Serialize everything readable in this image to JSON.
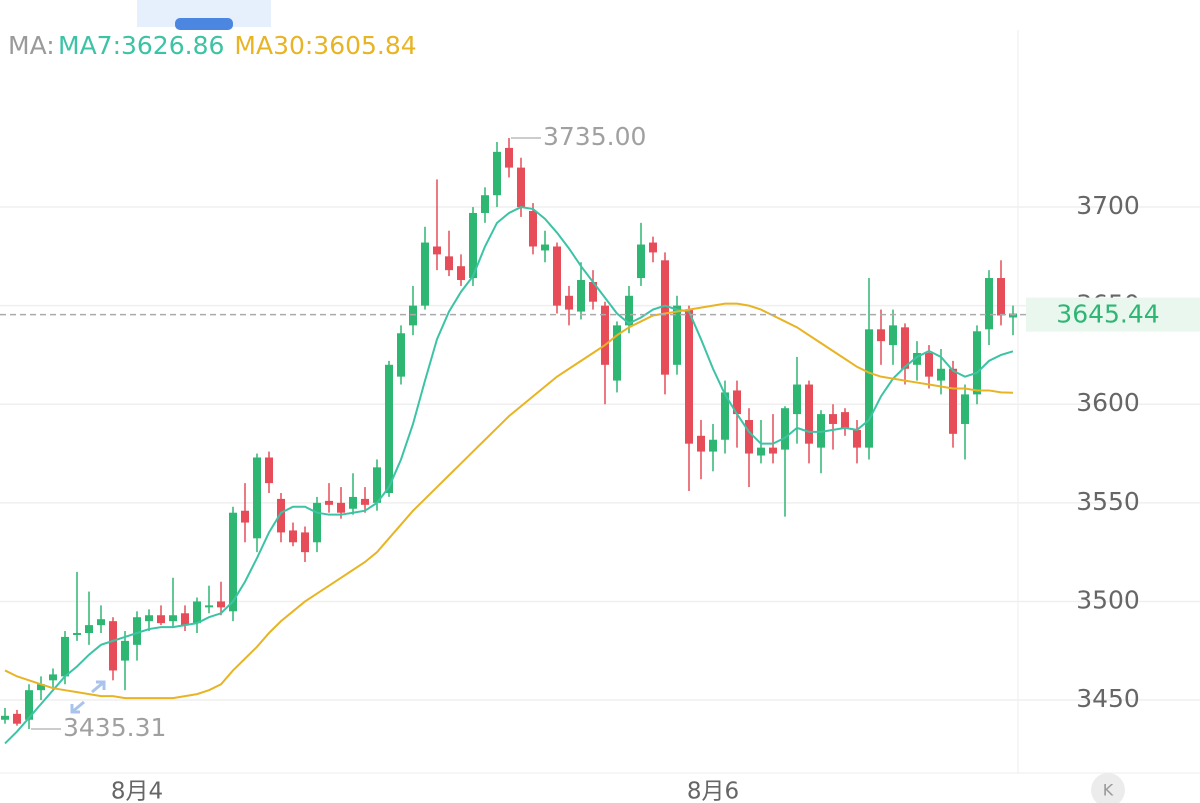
{
  "chart_data": {
    "type": "candlestick",
    "legend_prefix": "MA:",
    "categories": [
      null,
      null,
      null,
      null,
      null,
      null,
      null,
      null,
      null,
      null,
      null,
      "8月4",
      null,
      null,
      null,
      null,
      null,
      null,
      null,
      null,
      null,
      null,
      null,
      null,
      null,
      null,
      null,
      null,
      null,
      null,
      null,
      null,
      null,
      null,
      null,
      null,
      null,
      null,
      null,
      null,
      null,
      null,
      null,
      null,
      null,
      null,
      null,
      null,
      null,
      null,
      null,
      null,
      null,
      null,
      null,
      null,
      null,
      null,
      null,
      "8月6",
      null,
      null,
      null,
      null,
      null,
      null,
      null,
      null,
      null,
      null,
      null,
      null,
      null,
      null,
      null,
      null,
      null,
      null,
      null,
      null,
      null,
      null,
      null,
      null,
      null
    ],
    "open": [
      3440,
      3443,
      3440,
      3455,
      3460,
      3462,
      3483,
      3484,
      3488,
      3490,
      3470,
      3478,
      3490,
      3493,
      3490,
      3494,
      3489,
      3497,
      3500,
      3495,
      3546,
      3532,
      3573,
      3552,
      3536,
      3535,
      3530,
      3551,
      3550,
      3547,
      3552,
      3550,
      3555,
      3614,
      3640,
      3650,
      3680,
      3675,
      3670,
      3664,
      3697,
      3706,
      3730,
      3720,
      3698,
      3678,
      3680,
      3655,
      3647,
      3662,
      3650,
      3612,
      3640,
      3664,
      3682,
      3673,
      3620,
      3648,
      3584,
      3576,
      3582,
      3607,
      3592,
      3574,
      3578,
      3577,
      3595,
      3610,
      3578,
      3595,
      3596,
      3587,
      3578,
      3638,
      3630,
      3639,
      3620,
      3626,
      3612,
      3618,
      3590,
      3605,
      3638,
      3664,
      3644
    ],
    "high": [
      3446,
      3445,
      3458,
      3462,
      3466,
      3485,
      3515,
      3505,
      3498,
      3492,
      3485,
      3495,
      3496,
      3498,
      3512,
      3498,
      3502,
      3508,
      3510,
      3548,
      3560,
      3575,
      3576,
      3555,
      3540,
      3538,
      3553,
      3560,
      3558,
      3565,
      3558,
      3572,
      3622,
      3640,
      3660,
      3690,
      3714,
      3688,
      3676,
      3700,
      3710,
      3733,
      3735,
      3725,
      3702,
      3688,
      3682,
      3660,
      3672,
      3668,
      3652,
      3642,
      3660,
      3692,
      3685,
      3677,
      3655,
      3650,
      3592,
      3590,
      3612,
      3612,
      3598,
      3592,
      3595,
      3599,
      3624,
      3612,
      3597,
      3600,
      3598,
      3592,
      3664,
      3648,
      3648,
      3641,
      3632,
      3630,
      3628,
      3622,
      3610,
      3640,
      3668,
      3673,
      3650
    ],
    "low": [
      3438,
      3437,
      3435.31,
      3450,
      3456,
      3458,
      3480,
      3478,
      3484,
      3460,
      3455,
      3470,
      3485,
      3488,
      3487,
      3485,
      3484,
      3494,
      3493,
      3490,
      3530,
      3525,
      3555,
      3530,
      3528,
      3520,
      3525,
      3545,
      3542,
      3544,
      3545,
      3546,
      3553,
      3610,
      3635,
      3648,
      3668,
      3665,
      3660,
      3660,
      3692,
      3700,
      3715,
      3695,
      3676,
      3672,
      3646,
      3640,
      3643,
      3648,
      3600,
      3606,
      3636,
      3660,
      3672,
      3605,
      3615,
      3556,
      3562,
      3566,
      3575,
      3578,
      3558,
      3570,
      3570,
      3543,
      3580,
      3570,
      3565,
      3577,
      3584,
      3570,
      3572,
      3620,
      3620,
      3610,
      3612,
      3608,
      3605,
      3578,
      3572,
      3600,
      3630,
      3640,
      3635
    ],
    "close": [
      3442,
      3438,
      3455,
      3458,
      3463,
      3482,
      3484,
      3488,
      3491,
      3465,
      3480,
      3492,
      3493,
      3489,
      3493,
      3488,
      3500,
      3498,
      3497,
      3545,
      3540,
      3573,
      3560,
      3535,
      3530,
      3525,
      3550,
      3549,
      3545,
      3553,
      3549,
      3568,
      3620,
      3636,
      3650,
      3682,
      3676,
      3668,
      3663,
      3697,
      3706,
      3728,
      3720,
      3700,
      3680,
      3681,
      3650,
      3648,
      3663,
      3652,
      3620,
      3640,
      3655,
      3681,
      3677,
      3615,
      3650,
      3580,
      3576,
      3582,
      3606,
      3595,
      3575,
      3578,
      3575,
      3598,
      3610,
      3580,
      3595,
      3590,
      3588,
      3578,
      3638,
      3632,
      3640,
      3618,
      3626,
      3614,
      3618,
      3585,
      3605,
      3637,
      3664,
      3645,
      3646
    ],
    "up_color": "#2eb673",
    "down_color": "#e64d59",
    "series": [
      {
        "name": "MA7:3626.86",
        "color": "#3cc3a5",
        "values": [
          3428,
          3434,
          3441,
          3448,
          3455,
          3462,
          3467,
          3473,
          3478,
          3480,
          3482,
          3484,
          3486,
          3487,
          3487,
          3488,
          3489,
          3492,
          3494,
          3500,
          3510,
          3522,
          3535,
          3545,
          3548,
          3548,
          3545,
          3544,
          3544,
          3545,
          3546,
          3550,
          3558,
          3572,
          3590,
          3612,
          3633,
          3647,
          3657,
          3665,
          3680,
          3692,
          3697,
          3700,
          3699,
          3694,
          3687,
          3679,
          3670,
          3662,
          3654,
          3646,
          3641,
          3644,
          3648,
          3650,
          3648,
          3647,
          3633,
          3618,
          3605,
          3595,
          3586,
          3580,
          3580,
          3583,
          3588,
          3586,
          3586,
          3587,
          3588,
          3587,
          3592,
          3604,
          3613,
          3619,
          3624,
          3627,
          3624,
          3617,
          3614,
          3616,
          3622,
          3625,
          3626.86
        ]
      },
      {
        "name": "MA30:3605.84",
        "color": "#e8b424",
        "values": [
          3465,
          3462,
          3460,
          3458,
          3456,
          3455,
          3454,
          3453,
          3452,
          3452,
          3451,
          3451,
          3451,
          3451,
          3451,
          3452,
          3453,
          3455,
          3458,
          3465,
          3471,
          3477,
          3484,
          3490,
          3495,
          3500,
          3504,
          3508,
          3512,
          3516,
          3520,
          3525,
          3532,
          3539,
          3546,
          3552,
          3558,
          3564,
          3570,
          3576,
          3582,
          3588,
          3594,
          3599,
          3604,
          3609,
          3614,
          3618,
          3622,
          3626,
          3630,
          3635,
          3639,
          3642,
          3645,
          3646,
          3647,
          3648,
          3649,
          3650,
          3651,
          3651,
          3650,
          3648,
          3645,
          3642,
          3639,
          3635,
          3631,
          3627,
          3623,
          3619,
          3616,
          3614,
          3613,
          3612,
          3611,
          3610,
          3609,
          3608,
          3608,
          3607,
          3607,
          3606,
          3605.84
        ]
      }
    ],
    "annotations": [
      {
        "index": 42,
        "value": 3735,
        "label": "3735.00"
      },
      {
        "index": 2,
        "value": 3435.31,
        "label": "3435.31"
      }
    ],
    "last_price": {
      "value": 3645.44,
      "label": "3645.44"
    },
    "ylim": [
      3413,
      3805
    ],
    "yticks": [
      3450,
      3500,
      3550,
      3600,
      3650,
      3700
    ],
    "grid": true,
    "corner_badge": "K"
  }
}
